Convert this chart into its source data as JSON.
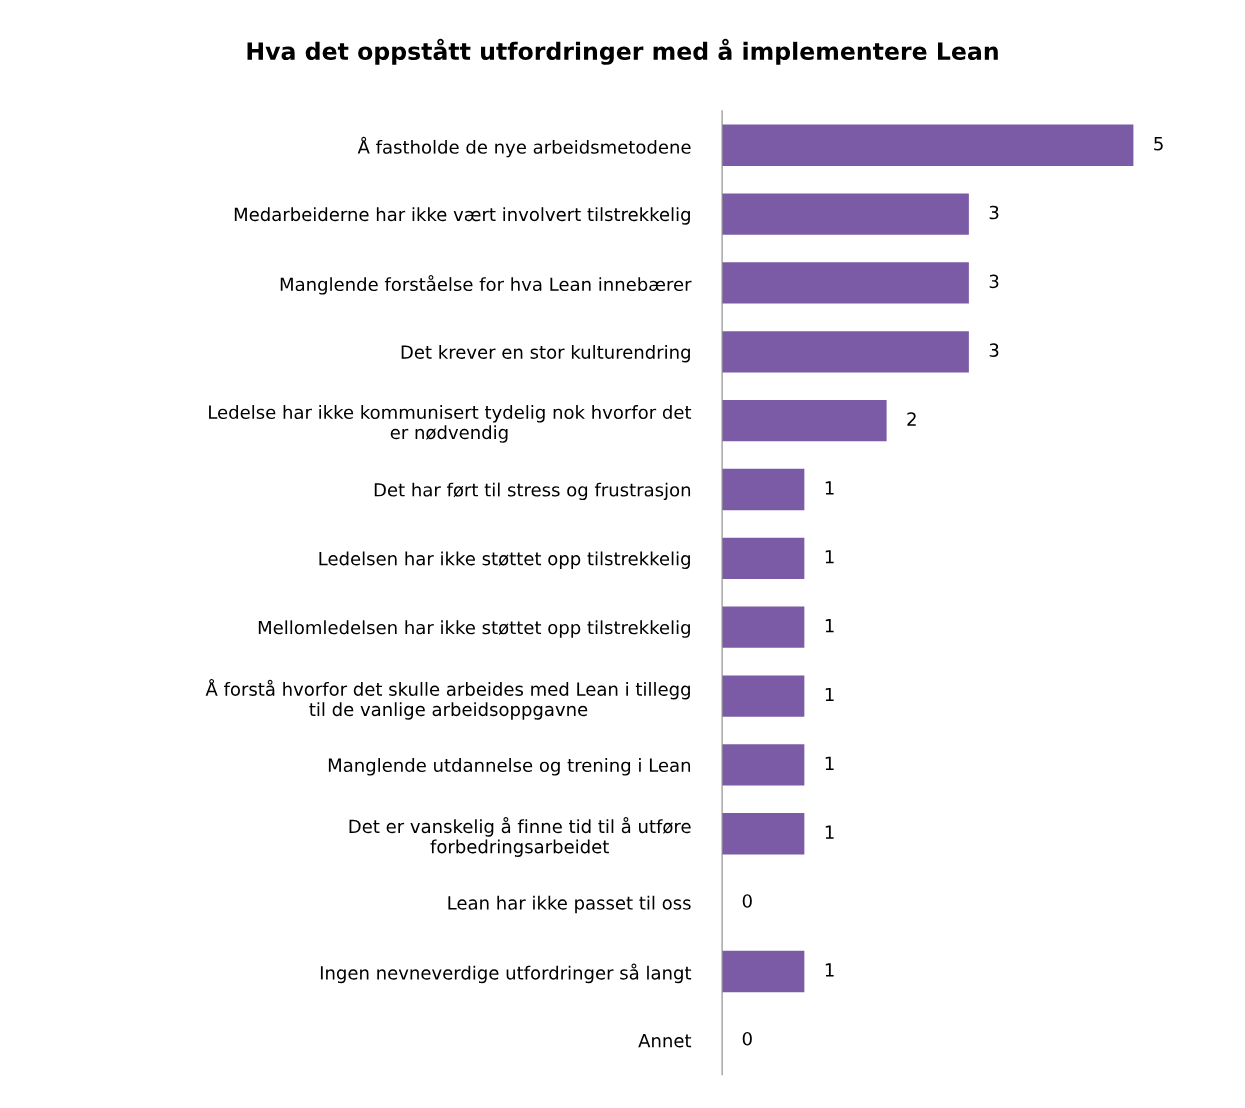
{
  "chart_data": {
    "type": "bar",
    "orientation": "horizontal",
    "title": "Hva det oppstått utfordringer med å implementere Lean",
    "categories": [
      "Å fastholde de nye arbeidsmetodene",
      "Medarbeiderne har ikke vært involvert tilstrekkelig",
      "Manglende forståelse for hva Lean innebærer",
      "Det krever en stor kulturendring",
      "Ledelse har ikke kommunisert tydelig nok hvorfor det\ner nødvendig",
      "Det har ført til stress og frustrasjon",
      "Ledelsen har ikke støttet opp tilstrekkelig",
      "Mellomledelsen har ikke støttet opp tilstrekkelig",
      "Å forstå hvorfor det skulle arbeides med Lean i tillegg\ntil de vanlige arbeidsoppgavne",
      "Manglende utdannelse og trening i Lean",
      "Det er vanskelig å finne tid til å utføre\nforbedringsarbeidet",
      "Lean har ikke passet til oss",
      "Ingen nevneverdige utfordringer så langt",
      "Annet"
    ],
    "values": [
      5,
      3,
      3,
      3,
      2,
      1,
      1,
      1,
      1,
      1,
      1,
      0,
      1,
      0
    ],
    "color": "#7b5ba6",
    "data_labels": true,
    "grid": false,
    "legend": false
  }
}
